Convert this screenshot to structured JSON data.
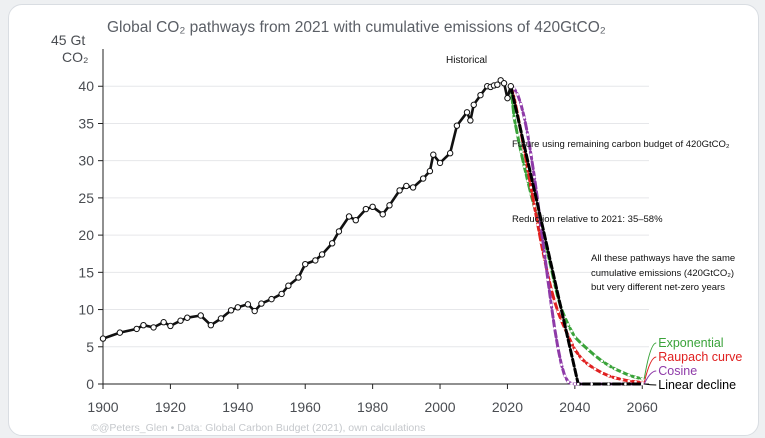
{
  "chart_data": {
    "type": "line",
    "title": "Global CO₂ pathways from 2021 with cumulative emissions of 420GtCO₂",
    "ylabel_line1": "45 Gt",
    "ylabel_line2": "CO₂",
    "xlim": [
      1900,
      2062
    ],
    "ylim": [
      0,
      45
    ],
    "xticks": [
      1900,
      1920,
      1940,
      1960,
      1980,
      2000,
      2020,
      2040,
      2060
    ],
    "yticks": [
      0,
      5,
      10,
      15,
      20,
      25,
      30,
      35,
      40
    ],
    "grid": true,
    "series": [
      {
        "name": "Historical",
        "color": "#111111",
        "style": "solid-markers",
        "x": [
          1900,
          1905,
          1910,
          1912,
          1915,
          1918,
          1920,
          1923,
          1925,
          1929,
          1932,
          1935,
          1938,
          1940,
          1943,
          1945,
          1947,
          1950,
          1953,
          1955,
          1958,
          1960,
          1963,
          1965,
          1968,
          1970,
          1973,
          1975,
          1978,
          1980,
          1983,
          1985,
          1988,
          1990,
          1992,
          1995,
          1997,
          1998,
          2000,
          2003,
          2005,
          2008,
          2009,
          2010,
          2012,
          2014,
          2015,
          2016,
          2017,
          2018,
          2019,
          2020,
          2021
        ],
        "y": [
          6.1,
          6.9,
          7.4,
          7.9,
          7.6,
          8.3,
          7.8,
          8.5,
          8.9,
          9.2,
          7.9,
          8.8,
          9.9,
          10.3,
          10.7,
          9.8,
          10.8,
          11.4,
          12.1,
          13.2,
          14.3,
          16.1,
          16.6,
          17.4,
          18.9,
          20.5,
          22.5,
          22.0,
          23.5,
          23.8,
          22.8,
          24.0,
          26.0,
          26.6,
          26.4,
          27.6,
          28.6,
          30.8,
          29.7,
          31.0,
          34.7,
          36.5,
          35.4,
          37.5,
          38.8,
          40.0,
          39.9,
          40.1,
          40.2,
          40.8,
          40.4,
          38.4,
          40.0
        ]
      },
      {
        "name": "Exponential",
        "color": "#3aa33a",
        "style": "dashed",
        "x": [
          2021,
          2022,
          2023,
          2024,
          2025,
          2026,
          2027,
          2028,
          2029,
          2030,
          2031,
          2032,
          2033,
          2034,
          2035,
          2036,
          2037,
          2038,
          2039,
          2040,
          2042,
          2044,
          2046,
          2048,
          2050,
          2052,
          2054,
          2056,
          2058,
          2060
        ],
        "y": [
          40.0,
          35.7,
          33.4,
          31.2,
          29.2,
          27.3,
          25.5,
          23.8,
          22.2,
          20.7,
          19.3,
          17.5,
          15.5,
          13.5,
          11.6,
          10.1,
          9.0,
          8.0,
          7.1,
          6.3,
          5.4,
          4.6,
          3.8,
          3.1,
          2.5,
          2.0,
          1.6,
          1.2,
          0.9,
          0.7
        ]
      },
      {
        "name": "Raupach curve",
        "color": "#e02020",
        "style": "dashed",
        "x": [
          2021,
          2022,
          2023,
          2024,
          2025,
          2026,
          2027,
          2028,
          2029,
          2030,
          2031,
          2032,
          2033,
          2034,
          2035,
          2036,
          2037,
          2038,
          2039,
          2040,
          2042,
          2044,
          2046,
          2048,
          2050,
          2052,
          2054,
          2056,
          2058,
          2060
        ],
        "y": [
          40.0,
          38.4,
          36.2,
          33.9,
          31.4,
          28.9,
          26.4,
          23.9,
          21.4,
          19.0,
          16.8,
          14.6,
          12.7,
          11.1,
          9.7,
          8.5,
          7.5,
          6.5,
          5.5,
          4.6,
          3.4,
          2.6,
          2.0,
          1.5,
          1.1,
          0.8,
          0.6,
          0.4,
          0.3,
          0.2
        ]
      },
      {
        "name": "Cosine",
        "color": "#8e3aa8",
        "style": "dashed",
        "x": [
          2021,
          2022,
          2023,
          2024,
          2025,
          2026,
          2027,
          2028,
          2029,
          2030,
          2031,
          2032,
          2033,
          2034,
          2035,
          2036,
          2037,
          2038,
          2039,
          2040,
          2045,
          2050,
          2055,
          2060
        ],
        "y": [
          40.0,
          39.7,
          38.9,
          37.6,
          35.8,
          33.5,
          30.8,
          27.8,
          24.5,
          21.0,
          17.5,
          14.0,
          10.6,
          7.5,
          4.8,
          2.6,
          1.1,
          0.3,
          0.05,
          0.0,
          0.0,
          0.0,
          0.0,
          0.0
        ]
      },
      {
        "name": "Linear decline",
        "color": "#000000",
        "style": "dashed",
        "x": [
          2021,
          2041,
          2045,
          2050,
          2055,
          2060
        ],
        "y": [
          40.0,
          0.0,
          0.0,
          0.0,
          0.0,
          0.0
        ]
      }
    ],
    "annotations": {
      "historical": "Historical",
      "budget": "Future using remaining carbon budget of 420GtCO₂",
      "reduction": "Reduction relative to 2021: 35–58%",
      "note_line1": "All these pathways have the same",
      "note_line2": "cumulative emissions (420GtCO₂)",
      "note_line3": "but very different net-zero years"
    },
    "credit": "©@Peters_Glen  •  Data: Global Carbon Budget (2021), own calculations"
  }
}
